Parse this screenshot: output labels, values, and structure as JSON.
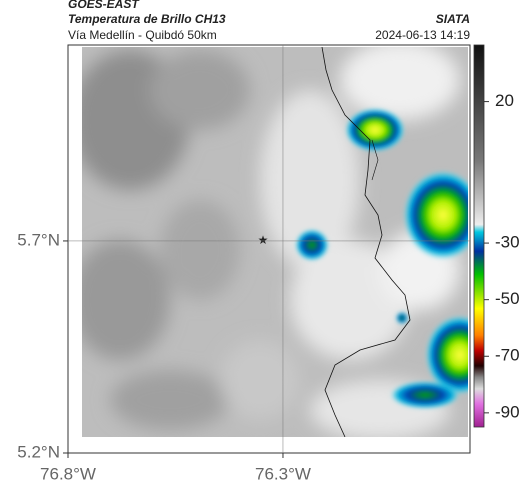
{
  "header": {
    "title": "GOES-EAST",
    "subtitle": "Temperatura de Brillo CH13",
    "route": "Vía Medellín - Quibdó 50km",
    "source": "SIATA",
    "datetime": "2024-06-13 14:19"
  },
  "map": {
    "xlim": [
      -76.8,
      -75.865
    ],
    "ylim": [
      5.2,
      6.162
    ],
    "xticks": [
      {
        "value": -76.8,
        "label": "76.8°W"
      },
      {
        "value": -76.3,
        "label": "76.3°W"
      }
    ],
    "yticks": [
      {
        "value": 5.7,
        "label": "5.7°N"
      },
      {
        "value": 5.2,
        "label": "5.2°N"
      }
    ]
  },
  "colorbar": {
    "lim": [
      40,
      -95
    ],
    "ticks": [
      20,
      -30,
      -50,
      -70,
      -90
    ]
  }
}
